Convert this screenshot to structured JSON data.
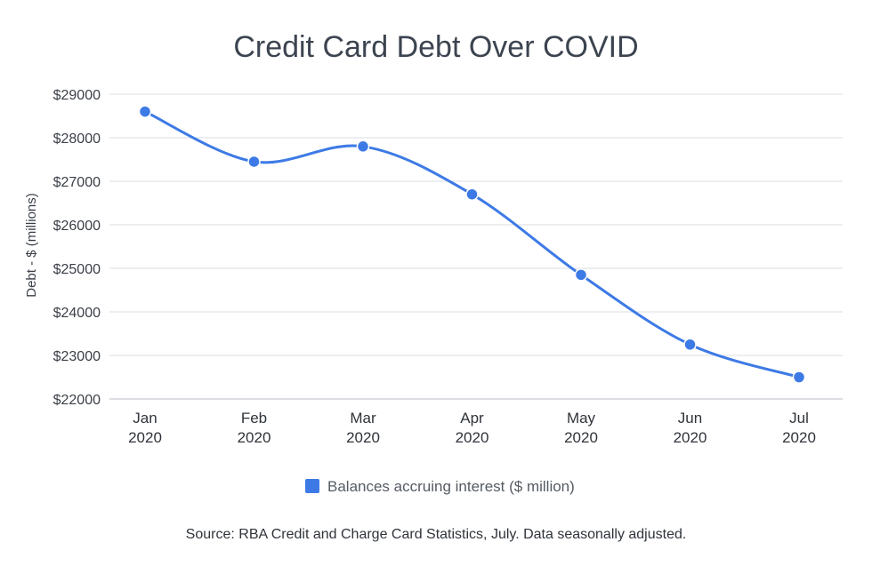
{
  "chart_data": {
    "type": "line",
    "title": "Credit Card Debt Over COVID",
    "ylabel": "Debt - $ (millions)",
    "xlabel": "",
    "categories": [
      [
        "Jan",
        "2020"
      ],
      [
        "Feb",
        "2020"
      ],
      [
        "Mar",
        "2020"
      ],
      [
        "Apr",
        "2020"
      ],
      [
        "May",
        "2020"
      ],
      [
        "Jun",
        "2020"
      ],
      [
        "Jul",
        "2020"
      ]
    ],
    "ylim": [
      22000,
      29000
    ],
    "yticks": [
      22000,
      23000,
      24000,
      25000,
      26000,
      27000,
      28000,
      29000
    ],
    "ytick_labels": [
      "$22000",
      "$23000",
      "$24000",
      "$25000",
      "$26000",
      "$27000",
      "$28000",
      "$29000"
    ],
    "series": [
      {
        "name": "Balances accruing interest ($ million)",
        "color": "#3d7ae6",
        "values": [
          28600,
          27450,
          27800,
          26700,
          24850,
          23250,
          22500
        ]
      }
    ],
    "grid": true,
    "legend_position": "bottom",
    "source_note": "Source: RBA Credit and Charge Card Statistics, July. Data seasonally adjusted."
  }
}
